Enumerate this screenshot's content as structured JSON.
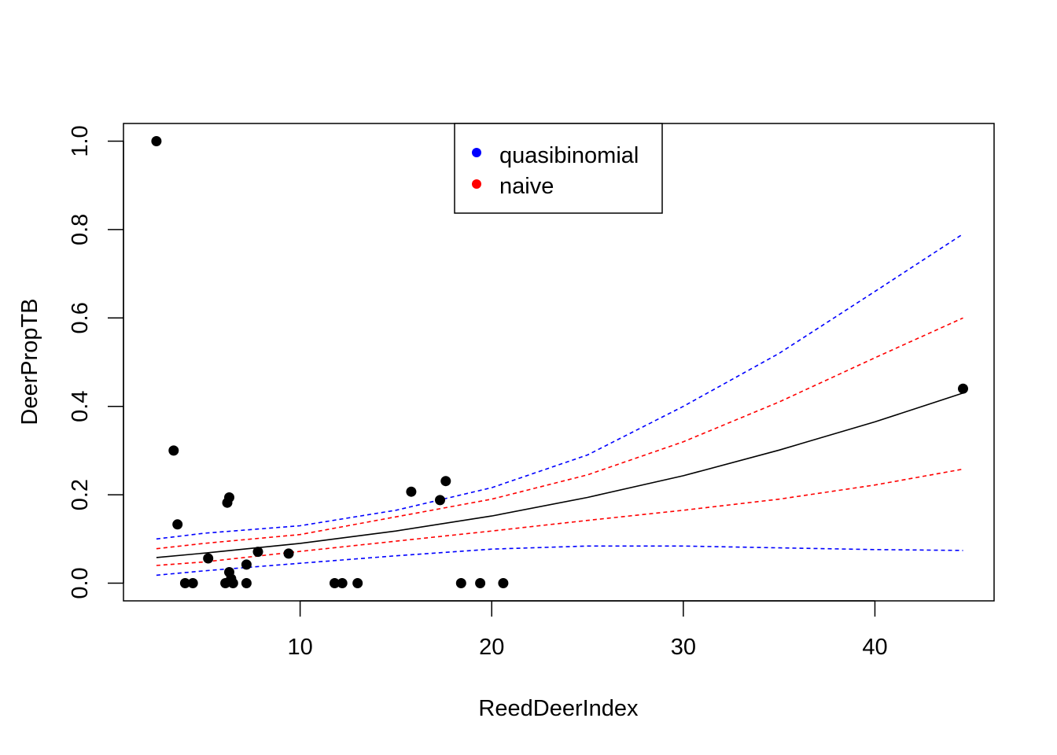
{
  "chart_data": {
    "type": "scatter",
    "title": "",
    "xlabel": "ReedDeerIndex",
    "ylabel": "DeerPropTB",
    "xlim": [
      0.78,
      46.22
    ],
    "ylim": [
      -0.04,
      1.04
    ],
    "x_ticks": [
      10,
      20,
      30,
      40
    ],
    "y_ticks": [
      0.0,
      0.2,
      0.4,
      0.6,
      0.8,
      1.0
    ],
    "x_tick_labels": [
      "10",
      "20",
      "30",
      "40"
    ],
    "y_tick_labels": [
      "0.0",
      "0.2",
      "0.4",
      "0.6",
      "0.8",
      "1.0"
    ],
    "legend_position": "top-center",
    "legend": [
      {
        "label": "quasibinomial",
        "color": "#0000ff"
      },
      {
        "label": "naive",
        "color": "#ff0000"
      }
    ],
    "points": [
      {
        "x": 2.5,
        "y": 1.0
      },
      {
        "x": 3.4,
        "y": 0.3
      },
      {
        "x": 3.6,
        "y": 0.133
      },
      {
        "x": 4.0,
        "y": 0.0
      },
      {
        "x": 4.4,
        "y": 0.0
      },
      {
        "x": 5.2,
        "y": 0.056
      },
      {
        "x": 6.1,
        "y": 0.0
      },
      {
        "x": 6.2,
        "y": 0.182
      },
      {
        "x": 6.3,
        "y": 0.194
      },
      {
        "x": 6.3,
        "y": 0.025
      },
      {
        "x": 6.4,
        "y": 0.01
      },
      {
        "x": 6.5,
        "y": 0.0
      },
      {
        "x": 7.2,
        "y": 0.0
      },
      {
        "x": 7.2,
        "y": 0.042
      },
      {
        "x": 7.8,
        "y": 0.071
      },
      {
        "x": 9.4,
        "y": 0.067
      },
      {
        "x": 11.8,
        "y": 0.0
      },
      {
        "x": 12.2,
        "y": 0.0
      },
      {
        "x": 13.0,
        "y": 0.0
      },
      {
        "x": 15.8,
        "y": 0.207
      },
      {
        "x": 17.3,
        "y": 0.188
      },
      {
        "x": 17.6,
        "y": 0.231
      },
      {
        "x": 18.4,
        "y": 0.0
      },
      {
        "x": 19.4,
        "y": 0.0
      },
      {
        "x": 20.6,
        "y": 0.0
      },
      {
        "x": 44.6,
        "y": 0.44
      }
    ],
    "series": [
      {
        "role": "fit",
        "color": "#000000",
        "style": "solid",
        "x": [
          2.5,
          5,
          10,
          15,
          20,
          25,
          30,
          35,
          40,
          44.6
        ],
        "y": [
          0.058,
          0.068,
          0.09,
          0.118,
          0.152,
          0.194,
          0.243,
          0.301,
          0.365,
          0.43
        ]
      },
      {
        "role": "quasibinomial upper",
        "color": "#0000ff",
        "style": "dashed",
        "x": [
          2.5,
          5,
          10,
          15,
          20,
          25,
          30,
          35,
          40,
          44.6
        ],
        "y": [
          0.1,
          0.113,
          0.13,
          0.165,
          0.216,
          0.29,
          0.4,
          0.52,
          0.66,
          0.79
        ]
      },
      {
        "role": "quasibinomial lower",
        "color": "#0000ff",
        "style": "dashed",
        "x": [
          2.5,
          5,
          10,
          15,
          20,
          25,
          30,
          35,
          40,
          44.6
        ],
        "y": [
          0.018,
          0.028,
          0.045,
          0.062,
          0.077,
          0.084,
          0.084,
          0.08,
          0.076,
          0.074
        ]
      },
      {
        "role": "naive upper",
        "color": "#ff0000",
        "style": "dashed",
        "x": [
          2.5,
          5,
          10,
          15,
          20,
          25,
          30,
          35,
          40,
          44.6
        ],
        "y": [
          0.078,
          0.09,
          0.11,
          0.15,
          0.19,
          0.245,
          0.32,
          0.41,
          0.51,
          0.6
        ]
      },
      {
        "role": "naive lower",
        "color": "#ff0000",
        "style": "dashed",
        "x": [
          2.5,
          5,
          10,
          15,
          20,
          25,
          30,
          35,
          40,
          44.6
        ],
        "y": [
          0.04,
          0.048,
          0.072,
          0.095,
          0.118,
          0.142,
          0.165,
          0.19,
          0.222,
          0.258
        ]
      }
    ]
  }
}
